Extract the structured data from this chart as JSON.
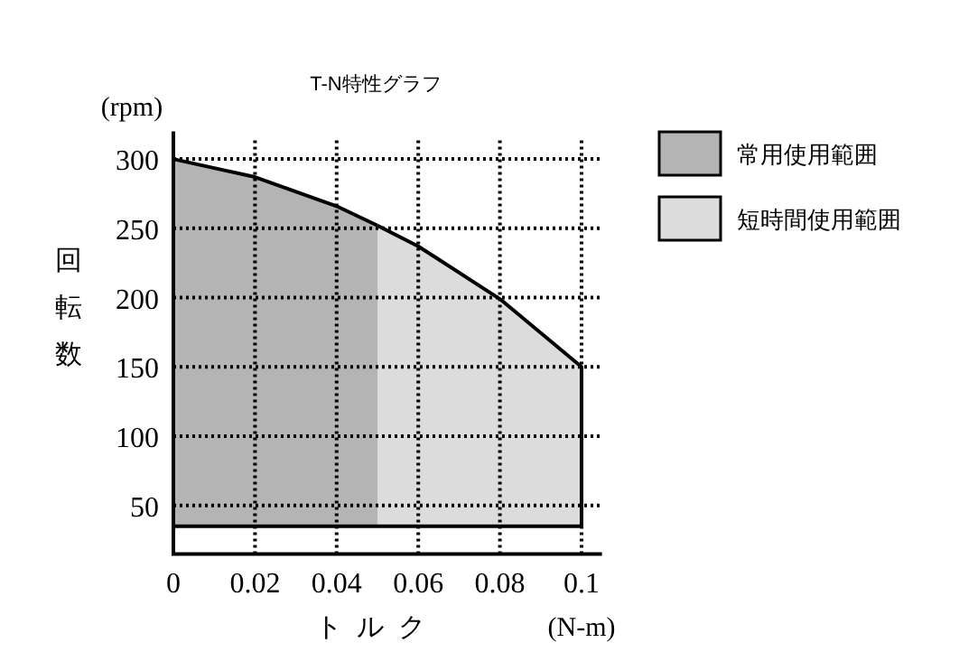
{
  "chart_data": {
    "type": "area",
    "title": "T-N特性グラフ",
    "xlabel": "トルク",
    "ylabel": "回転数",
    "annotations": [
      "(rpm)",
      "(N-m)"
    ],
    "xlim": [
      0,
      0.105
    ],
    "ylim": [
      15,
      320
    ],
    "xticks": [
      0,
      0.02,
      0.04,
      0.06,
      0.08,
      0.1
    ],
    "yticks": [
      50,
      100,
      150,
      200,
      250,
      300
    ],
    "grid": true,
    "legend": "top right",
    "ref_lines": [
      {
        "axis": "y",
        "value": 35
      }
    ],
    "series": [
      {
        "name": "常用使用範囲",
        "color": "#b4b4b4",
        "x": [
          0,
          0.02,
          0.04,
          0.05
        ],
        "values": [
          300,
          287,
          266,
          252
        ]
      },
      {
        "name": "短時間使用範囲",
        "color": "#dcdcdc",
        "x": [
          0.05,
          0.06,
          0.08,
          0.1
        ],
        "values": [
          252,
          237,
          199,
          150
        ]
      }
    ]
  }
}
